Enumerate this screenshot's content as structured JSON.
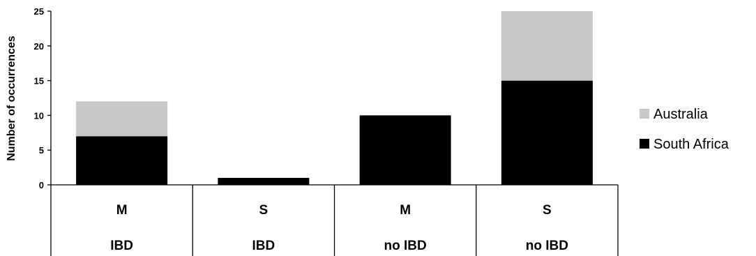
{
  "chart_data": {
    "type": "bar",
    "stacked": true,
    "categories": [
      "M",
      "S",
      "M",
      "S"
    ],
    "groups": [
      "IBD",
      "IBD",
      "no IBD",
      "no IBD"
    ],
    "series": [
      {
        "name": "South Africa",
        "values": [
          7,
          1,
          10,
          15
        ],
        "color": "#000000"
      },
      {
        "name": "Australia",
        "values": [
          5,
          0,
          0,
          10
        ],
        "color": "#c8c8c8"
      }
    ],
    "ylabel": "Number of occurrences",
    "ylim": [
      0,
      25
    ],
    "yticks": [
      0,
      5,
      10,
      15,
      20,
      25
    ],
    "grid": false,
    "legend_position": "right",
    "legend": [
      "Australia",
      "South Africa"
    ]
  }
}
